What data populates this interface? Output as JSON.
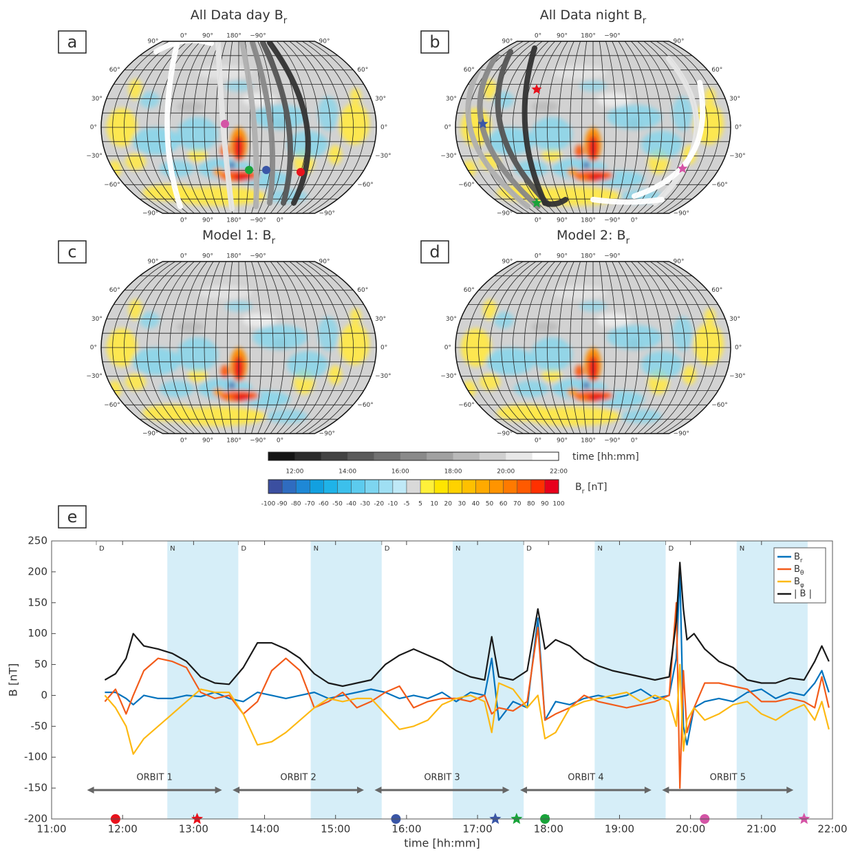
{
  "panels": [
    {
      "label": "a",
      "title": "All Data day Br"
    },
    {
      "label": "b",
      "title": "All Data night Br"
    },
    {
      "label": "c",
      "title": "Model 1: Br"
    },
    {
      "label": "d",
      "title": "Model 2: Br"
    }
  ],
  "map_lat_labels": [
    "90°",
    "60°",
    "30°",
    "0°",
    "−30°",
    "−60°",
    "−90°"
  ],
  "map_lon_labels": [
    "0°",
    "90°",
    "180°",
    "−90°",
    "0°"
  ],
  "time_colorbar": {
    "label": "time [hh:mm]",
    "ticks": [
      "12:00",
      "14:00",
      "16:00",
      "18:00",
      "20:00",
      "22:00"
    ]
  },
  "br_colorbar": {
    "label": "Br [nT]",
    "ticks": [
      -100,
      -90,
      -80,
      -70,
      -60,
      -50,
      -40,
      -30,
      -20,
      -10,
      -5,
      5,
      10,
      20,
      30,
      40,
      50,
      60,
      70,
      80,
      90,
      100
    ],
    "colors": [
      "#3b4fa0",
      "#2f6cc0",
      "#1e88d6",
      "#12a0e0",
      "#1fb3e8",
      "#3cc0ec",
      "#5ccbee",
      "#7dd5f0",
      "#9fdff3",
      "#bfe9f7",
      "#d9d9d9",
      "#fff03a",
      "#ffe500",
      "#ffd200",
      "#ffc000",
      "#ffaa00",
      "#ff9400",
      "#ff7a00",
      "#ff5a00",
      "#ff3000",
      "#e8001c"
    ]
  },
  "chart_data": {
    "type": "line",
    "panel_label": "e",
    "xlabel": "time [hh:mm]",
    "ylabel": "B [nT]",
    "xlim": [
      11,
      22
    ],
    "xticks": [
      {
        "value": 11,
        "label": "11:00"
      },
      {
        "value": 12,
        "label": "12:00"
      },
      {
        "value": 13,
        "label": "13:00"
      },
      {
        "value": 14,
        "label": "14:00"
      },
      {
        "value": 15,
        "label": "15:00"
      },
      {
        "value": 16,
        "label": "16:00"
      },
      {
        "value": 17,
        "label": "17:00"
      },
      {
        "value": 18,
        "label": "18:00"
      },
      {
        "value": 19,
        "label": "19:00"
      },
      {
        "value": 20,
        "label": "20:00"
      },
      {
        "value": 21,
        "label": "21:00"
      },
      {
        "value": 22,
        "label": "22:00"
      }
    ],
    "ylim": [
      -200,
      250
    ],
    "yticks": [
      -200,
      -150,
      -100,
      -50,
      0,
      50,
      100,
      150,
      200,
      250
    ],
    "legend": "upper right",
    "x": [
      11.75,
      11.9,
      12.05,
      12.15,
      12.3,
      12.5,
      12.7,
      12.9,
      13.1,
      13.3,
      13.5,
      13.7,
      13.9,
      14.1,
      14.3,
      14.5,
      14.7,
      14.9,
      15.1,
      15.3,
      15.5,
      15.7,
      15.9,
      16.1,
      16.3,
      16.5,
      16.7,
      16.9,
      17.1,
      17.2,
      17.3,
      17.5,
      17.7,
      17.85,
      17.95,
      18.1,
      18.3,
      18.5,
      18.7,
      18.9,
      19.1,
      19.3,
      19.5,
      19.7,
      19.8,
      19.85,
      19.9,
      19.95,
      20.05,
      20.2,
      20.4,
      20.6,
      20.8,
      21.0,
      21.2,
      21.4,
      21.6,
      21.75,
      21.85,
      21.95
    ],
    "series": [
      {
        "name": "Br",
        "color": "#0072bd",
        "values": [
          5,
          5,
          -5,
          -15,
          0,
          -5,
          -5,
          0,
          -2,
          5,
          -5,
          -10,
          5,
          0,
          -5,
          0,
          5,
          -5,
          0,
          5,
          10,
          5,
          -5,
          0,
          -5,
          5,
          -10,
          5,
          0,
          60,
          -40,
          -10,
          -20,
          125,
          -40,
          -10,
          -15,
          -5,
          0,
          -5,
          0,
          10,
          -5,
          0,
          60,
          200,
          -50,
          -80,
          -20,
          -10,
          -5,
          -10,
          5,
          10,
          -5,
          5,
          0,
          20,
          40,
          5
        ]
      },
      {
        "name": "Bθ",
        "color": "#f25b1a",
        "values": [
          -10,
          10,
          -30,
          0,
          40,
          60,
          55,
          45,
          5,
          -5,
          0,
          -30,
          -10,
          40,
          60,
          40,
          -20,
          -10,
          5,
          -20,
          -10,
          5,
          15,
          -20,
          -10,
          -5,
          -5,
          -10,
          0,
          -30,
          -20,
          -25,
          -10,
          110,
          -40,
          -30,
          -20,
          0,
          -10,
          -15,
          -20,
          -15,
          -10,
          0,
          150,
          -150,
          40,
          -60,
          -20,
          20,
          20,
          15,
          10,
          -10,
          -10,
          -5,
          -10,
          -20,
          30,
          -20
        ]
      },
      {
        "name": "Bφ",
        "color": "#fdb913",
        "values": [
          0,
          -20,
          -50,
          -95,
          -70,
          -50,
          -30,
          -10,
          10,
          5,
          5,
          -30,
          -80,
          -75,
          -60,
          -40,
          -20,
          -5,
          -10,
          -5,
          -5,
          -30,
          -55,
          -50,
          -40,
          -15,
          -5,
          0,
          -10,
          -60,
          20,
          10,
          -20,
          0,
          -70,
          -60,
          -20,
          -10,
          -5,
          0,
          5,
          -10,
          0,
          -10,
          -50,
          50,
          -90,
          -40,
          -20,
          -40,
          -30,
          -15,
          -10,
          -30,
          -40,
          -25,
          -15,
          -40,
          -10,
          -55
        ]
      },
      {
        "name": "| B |",
        "color": "#1a1a1a",
        "values": [
          25,
          35,
          60,
          100,
          80,
          75,
          68,
          55,
          30,
          20,
          18,
          45,
          85,
          85,
          75,
          60,
          35,
          20,
          15,
          20,
          25,
          50,
          65,
          75,
          65,
          55,
          40,
          30,
          25,
          95,
          30,
          25,
          40,
          140,
          75,
          90,
          80,
          60,
          48,
          40,
          35,
          30,
          25,
          30,
          120,
          215,
          140,
          90,
          100,
          75,
          55,
          45,
          25,
          20,
          20,
          28,
          25,
          55,
          80,
          55
        ]
      }
    ],
    "periods": [
      {
        "label": "D",
        "start": 11.63,
        "end": 12.63
      },
      {
        "label": "N",
        "start": 12.63,
        "end": 13.63
      },
      {
        "label": "D",
        "start": 13.63,
        "end": 14.65
      },
      {
        "label": "N",
        "start": 14.65,
        "end": 15.65
      },
      {
        "label": "D",
        "start": 15.65,
        "end": 16.65
      },
      {
        "label": "N",
        "start": 16.65,
        "end": 17.65
      },
      {
        "label": "D",
        "start": 17.65,
        "end": 18.65
      },
      {
        "label": "N",
        "start": 18.65,
        "end": 19.65
      },
      {
        "label": "D",
        "start": 19.65,
        "end": 20.65
      },
      {
        "label": "N",
        "start": 20.65,
        "end": 21.65
      }
    ],
    "orbits": [
      {
        "label": "ORBIT 1",
        "start": 11.5,
        "end": 13.4
      },
      {
        "label": "ORBIT 2",
        "start": 13.55,
        "end": 15.4
      },
      {
        "label": "ORBIT 3",
        "start": 15.55,
        "end": 17.45
      },
      {
        "label": "ORBIT 4",
        "start": 17.6,
        "end": 19.45
      },
      {
        "label": "ORBIT 5",
        "start": 19.6,
        "end": 21.45
      }
    ],
    "markers": [
      {
        "x": 11.9,
        "shape": "circle",
        "color": "#e8121c"
      },
      {
        "x": 13.05,
        "shape": "star",
        "color": "#e8121c"
      },
      {
        "x": 15.85,
        "shape": "circle",
        "color": "#3a56a6"
      },
      {
        "x": 17.25,
        "shape": "star",
        "color": "#3a56a6"
      },
      {
        "x": 17.55,
        "shape": "star",
        "color": "#19a33a"
      },
      {
        "x": 17.95,
        "shape": "circle",
        "color": "#19a33a"
      },
      {
        "x": 20.2,
        "shape": "circle",
        "color": "#d455a6"
      },
      {
        "x": 21.6,
        "shape": "star",
        "color": "#d455a6"
      }
    ]
  }
}
